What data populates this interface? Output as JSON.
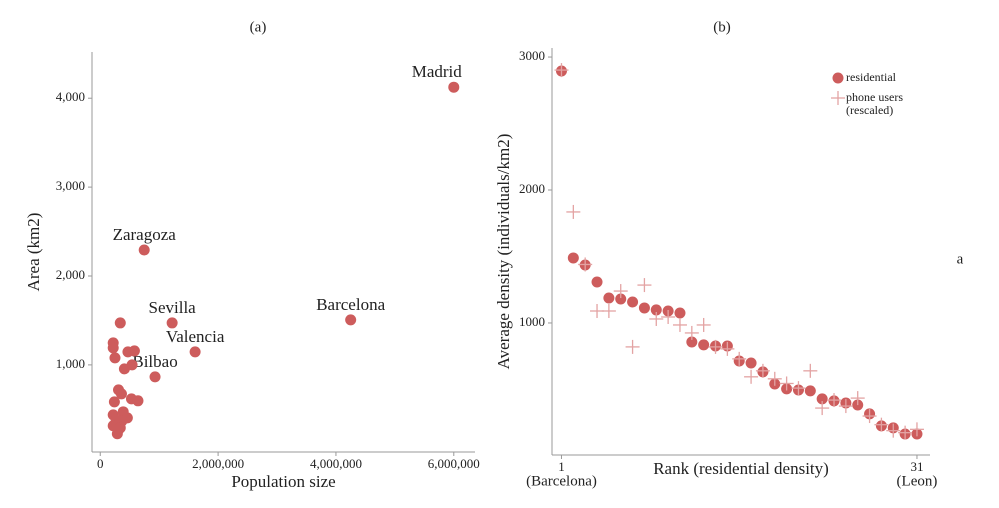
{
  "chart_data": [
    {
      "type": "scatter",
      "title": "(a)",
      "x_label": "Population size",
      "y_label": "Area (km2)",
      "color": "#cd5c5c",
      "x": [
        6000000,
        4250000,
        746000,
        1220000,
        1610000,
        930000,
        220000,
        220000,
        250000,
        340000,
        470000,
        580000,
        540000,
        410000,
        310000,
        360000,
        240000,
        530000,
        640000,
        220000,
        390000,
        460000,
        370000,
        270000,
        220000,
        340000,
        290000,
        310000
      ],
      "y": [
        4124,
        1506,
        2292,
        1472,
        1146,
        865,
        1247,
        1191,
        1079,
        1472,
        1146,
        1157,
        1000,
        955,
        719,
        674,
        584,
        618,
        596,
        438,
        472,
        404,
        371,
        382,
        315,
        292,
        225,
        270
      ],
      "point_labels": [
        "Madrid",
        "Barcelona",
        "Zaragoza",
        "Sevilla",
        "Valencia",
        "Bilbao",
        null,
        null,
        null,
        null,
        null,
        null,
        null,
        null,
        null,
        null,
        null,
        null,
        null,
        null,
        null,
        null,
        null,
        null,
        null,
        null,
        null,
        null
      ],
      "xlim": [
        -140000,
        6360000
      ],
      "ylim": [
        20,
        4520
      ],
      "xticks": [
        {
          "value": 0,
          "label": "0"
        },
        {
          "value": 2000000,
          "label": "2,000,000"
        },
        {
          "value": 4000000,
          "label": "4,000,000"
        },
        {
          "value": 6000000,
          "label": "6,000,000"
        }
      ],
      "yticks": [
        {
          "value": 1000,
          "label": "1,000"
        },
        {
          "value": 2000,
          "label": "2,000"
        },
        {
          "value": 3000,
          "label": "3,000"
        },
        {
          "value": 4000,
          "label": "4,000"
        }
      ]
    },
    {
      "type": "scatter",
      "title": "(b)",
      "x_label": "Rank (residential density)",
      "y_label": "Average density (individuals/km2)",
      "x": [
        1,
        2,
        3,
        4,
        5,
        6,
        7,
        8,
        9,
        10,
        11,
        12,
        13,
        14,
        15,
        16,
        17,
        18,
        19,
        20,
        21,
        22,
        23,
        24,
        25,
        26,
        27,
        28,
        29,
        30,
        31
      ],
      "series": [
        {
          "name": "residential",
          "color": "#cd5c5c",
          "marker": "circle",
          "values": [
            2895,
            1489,
            1436,
            1308,
            1188,
            1180,
            1158,
            1113,
            1098,
            1090,
            1075,
            857,
            835,
            827,
            827,
            714,
            699,
            632,
            541,
            504,
            496,
            489,
            429,
            414,
            398,
            383,
            316,
            226,
            211,
            165,
            165
          ]
        },
        {
          "name": "phone users (rescaled)",
          "color": "#e3a3a3",
          "marker": "plus",
          "values": [
            2902,
            1835,
            1440,
            1090,
            1090,
            1240,
            820,
            1285,
            1030,
            1045,
            985,
            925,
            985,
            820,
            805,
            730,
            595,
            640,
            580,
            545,
            510,
            640,
            360,
            420,
            375,
            435,
            300,
            235,
            190,
            175,
            200
          ]
        }
      ],
      "xlim": [
        0.2,
        32.1
      ],
      "ylim": [
        7,
        3068
      ],
      "xticks": [
        1,
        31
      ],
      "x_end_labels": [
        "(Barcelona)",
        "(Leon)"
      ],
      "yticks": [
        1000,
        2000,
        3000
      ]
    }
  ],
  "side_note": "a"
}
